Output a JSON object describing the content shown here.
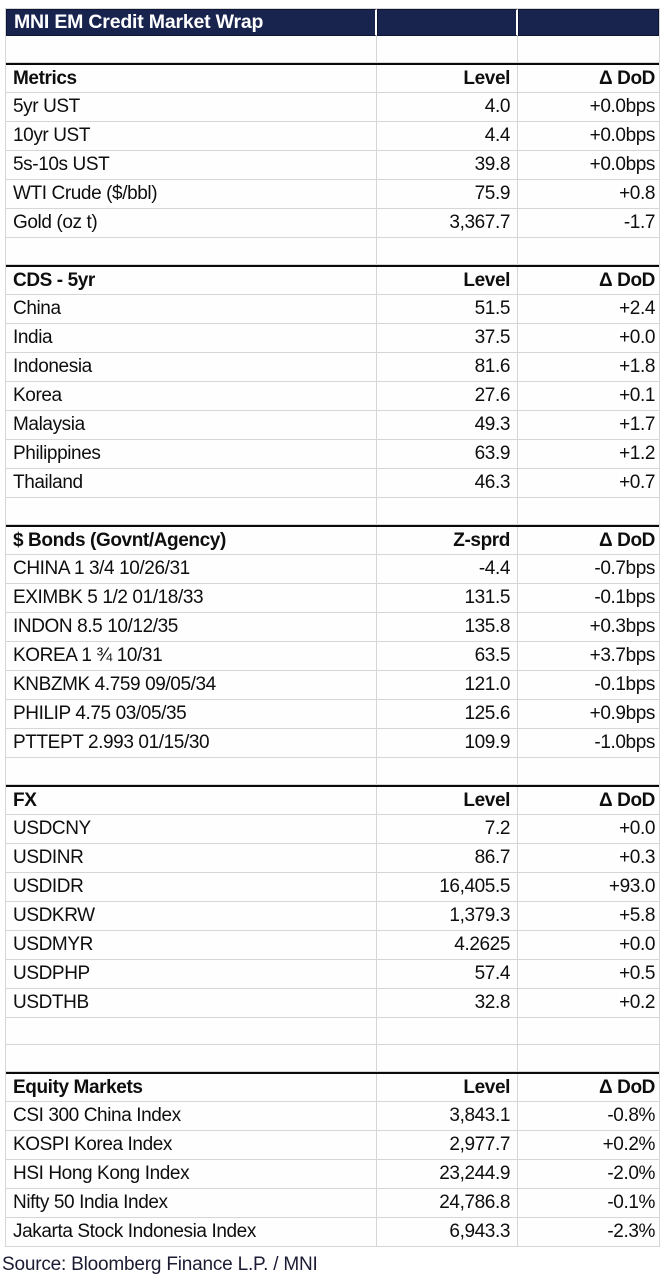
{
  "title": "MNI EM Credit Market Wrap",
  "source": "Source: Bloomberg Finance L.P. / MNI",
  "colors": {
    "header_navy": "#18234e",
    "grid_line": "#d6d6d6",
    "section_border": "#0a0a0a",
    "title_text": "#ffffff",
    "body_text": "#0e0e0e"
  },
  "table": {
    "change_header": "Δ DoD",
    "sections": [
      {
        "name": "Metrics",
        "value_header": "Level",
        "spacers_before": 1,
        "rows": [
          {
            "label": "5yr UST",
            "value": "4.0",
            "change": "+0.0bps"
          },
          {
            "label": "10yr UST",
            "value": "4.4",
            "change": "+0.0bps"
          },
          {
            "label": "5s-10s UST",
            "value": "39.8",
            "change": "+0.0bps"
          },
          {
            "label": "WTI Crude ($/bbl)",
            "value": "75.9",
            "change": "+0.8"
          },
          {
            "label": "Gold (oz t)",
            "value": "3,367.7",
            "change": "-1.7"
          }
        ]
      },
      {
        "name": "CDS - 5yr",
        "value_header": "Level",
        "spacers_before": 1,
        "rows": [
          {
            "label": "China",
            "value": "51.5",
            "change": "+2.4"
          },
          {
            "label": "India",
            "value": "37.5",
            "change": "+0.0"
          },
          {
            "label": "Indonesia",
            "value": "81.6",
            "change": "+1.8"
          },
          {
            "label": "Korea",
            "value": "27.6",
            "change": "+0.1"
          },
          {
            "label": "Malaysia",
            "value": "49.3",
            "change": "+1.7"
          },
          {
            "label": "Philippines",
            "value": "63.9",
            "change": "+1.2"
          },
          {
            "label": "Thailand",
            "value": "46.3",
            "change": "+0.7"
          }
        ]
      },
      {
        "name": "$ Bonds (Govnt/Agency)",
        "value_header": "Z-sprd",
        "spacers_before": 1,
        "rows": [
          {
            "label": "CHINA 1 3/4 10/26/31",
            "value": "-4.4",
            "change": "-0.7bps"
          },
          {
            "label": "EXIMBK 5 1/2 01/18/33",
            "value": "131.5",
            "change": "-0.1bps"
          },
          {
            "label": "INDON 8.5 10/12/35",
            "value": "135.8",
            "change": "+0.3bps"
          },
          {
            "label": "KOREA 1 ¾ 10/31",
            "value": "63.5",
            "change": "+3.7bps"
          },
          {
            "label": "KNBZMK 4.759 09/05/34",
            "value": "121.0",
            "change": "-0.1bps"
          },
          {
            "label": "PHILIP 4.75 03/05/35",
            "value": "125.6",
            "change": "+0.9bps"
          },
          {
            "label": "PTTEPT 2.993 01/15/30",
            "value": "109.9",
            "change": "-1.0bps"
          }
        ]
      },
      {
        "name": "FX",
        "value_header": "Level",
        "spacers_before": 1,
        "rows": [
          {
            "label": "USDCNY",
            "value": "7.2",
            "change": "+0.0"
          },
          {
            "label": "USDINR",
            "value": "86.7",
            "change": "+0.3"
          },
          {
            "label": "USDIDR",
            "value": "16,405.5",
            "change": "+93.0"
          },
          {
            "label": "USDKRW",
            "value": "1,379.3",
            "change": "+5.8"
          },
          {
            "label": "USDMYR",
            "value": "4.2625",
            "change": "+0.0"
          },
          {
            "label": "USDPHP",
            "value": "57.4",
            "change": "+0.5"
          },
          {
            "label": "USDTHB",
            "value": "32.8",
            "change": "+0.2"
          }
        ]
      },
      {
        "name": "Equity Markets",
        "value_header": "Level",
        "spacers_before": 2,
        "rows": [
          {
            "label": "CSI 300 China Index",
            "value": "3,843.1",
            "change": "-0.8%"
          },
          {
            "label": "KOSPI Korea Index",
            "value": "2,977.7",
            "change": "+0.2%"
          },
          {
            "label": "HSI Hong Kong Index",
            "value": "23,244.9",
            "change": "-2.0%"
          },
          {
            "label": "Nifty 50 India Index",
            "value": "24,786.8",
            "change": "-0.1%"
          },
          {
            "label": "Jakarta Stock Indonesia Index",
            "value": "6,943.3",
            "change": "-2.3%"
          }
        ]
      }
    ]
  },
  "chart_data": [
    {
      "type": "table",
      "title": "Metrics",
      "columns": [
        "Metrics",
        "Level",
        "Δ DoD"
      ],
      "rows": [
        [
          "5yr UST",
          4.0,
          "+0.0bps"
        ],
        [
          "10yr UST",
          4.4,
          "+0.0bps"
        ],
        [
          "5s-10s UST",
          39.8,
          "+0.0bps"
        ],
        [
          "WTI Crude ($/bbl)",
          75.9,
          "+0.8"
        ],
        [
          "Gold (oz t)",
          3367.7,
          "-1.7"
        ]
      ]
    },
    {
      "type": "table",
      "title": "CDS - 5yr",
      "columns": [
        "CDS - 5yr",
        "Level",
        "Δ DoD"
      ],
      "rows": [
        [
          "China",
          51.5,
          "+2.4"
        ],
        [
          "India",
          37.5,
          "+0.0"
        ],
        [
          "Indonesia",
          81.6,
          "+1.8"
        ],
        [
          "Korea",
          27.6,
          "+0.1"
        ],
        [
          "Malaysia",
          49.3,
          "+1.7"
        ],
        [
          "Philippines",
          63.9,
          "+1.2"
        ],
        [
          "Thailand",
          46.3,
          "+0.7"
        ]
      ]
    },
    {
      "type": "table",
      "title": "$ Bonds (Govnt/Agency)",
      "columns": [
        "$ Bonds (Govnt/Agency)",
        "Z-sprd",
        "Δ DoD"
      ],
      "rows": [
        [
          "CHINA 1 3/4 10/26/31",
          -4.4,
          "-0.7bps"
        ],
        [
          "EXIMBK 5 1/2 01/18/33",
          131.5,
          "-0.1bps"
        ],
        [
          "INDON 8.5 10/12/35",
          135.8,
          "+0.3bps"
        ],
        [
          "KOREA 1 ¾ 10/31",
          63.5,
          "+3.7bps"
        ],
        [
          "KNBZMK 4.759 09/05/34",
          121.0,
          "-0.1bps"
        ],
        [
          "PHILIP 4.75 03/05/35",
          125.6,
          "+0.9bps"
        ],
        [
          "PTTEPT 2.993 01/15/30",
          109.9,
          "-1.0bps"
        ]
      ]
    },
    {
      "type": "table",
      "title": "FX",
      "columns": [
        "FX",
        "Level",
        "Δ DoD"
      ],
      "rows": [
        [
          "USDCNY",
          7.2,
          "+0.0"
        ],
        [
          "USDINR",
          86.7,
          "+0.3"
        ],
        [
          "USDIDR",
          16405.5,
          "+93.0"
        ],
        [
          "USDKRW",
          1379.3,
          "+5.8"
        ],
        [
          "USDMYR",
          4.2625,
          "+0.0"
        ],
        [
          "USDPHP",
          57.4,
          "+0.5"
        ],
        [
          "USDTHB",
          32.8,
          "+0.2"
        ]
      ]
    },
    {
      "type": "table",
      "title": "Equity Markets",
      "columns": [
        "Equity Markets",
        "Level",
        "Δ DoD"
      ],
      "rows": [
        [
          "CSI 300 China Index",
          3843.1,
          "-0.8%"
        ],
        [
          "KOSPI Korea Index",
          2977.7,
          "+0.2%"
        ],
        [
          "HSI Hong Kong Index",
          23244.9,
          "-2.0%"
        ],
        [
          "Nifty 50 India Index",
          24786.8,
          "-0.1%"
        ],
        [
          "Jakarta Stock Indonesia Index",
          6943.3,
          "-2.3%"
        ]
      ]
    }
  ]
}
